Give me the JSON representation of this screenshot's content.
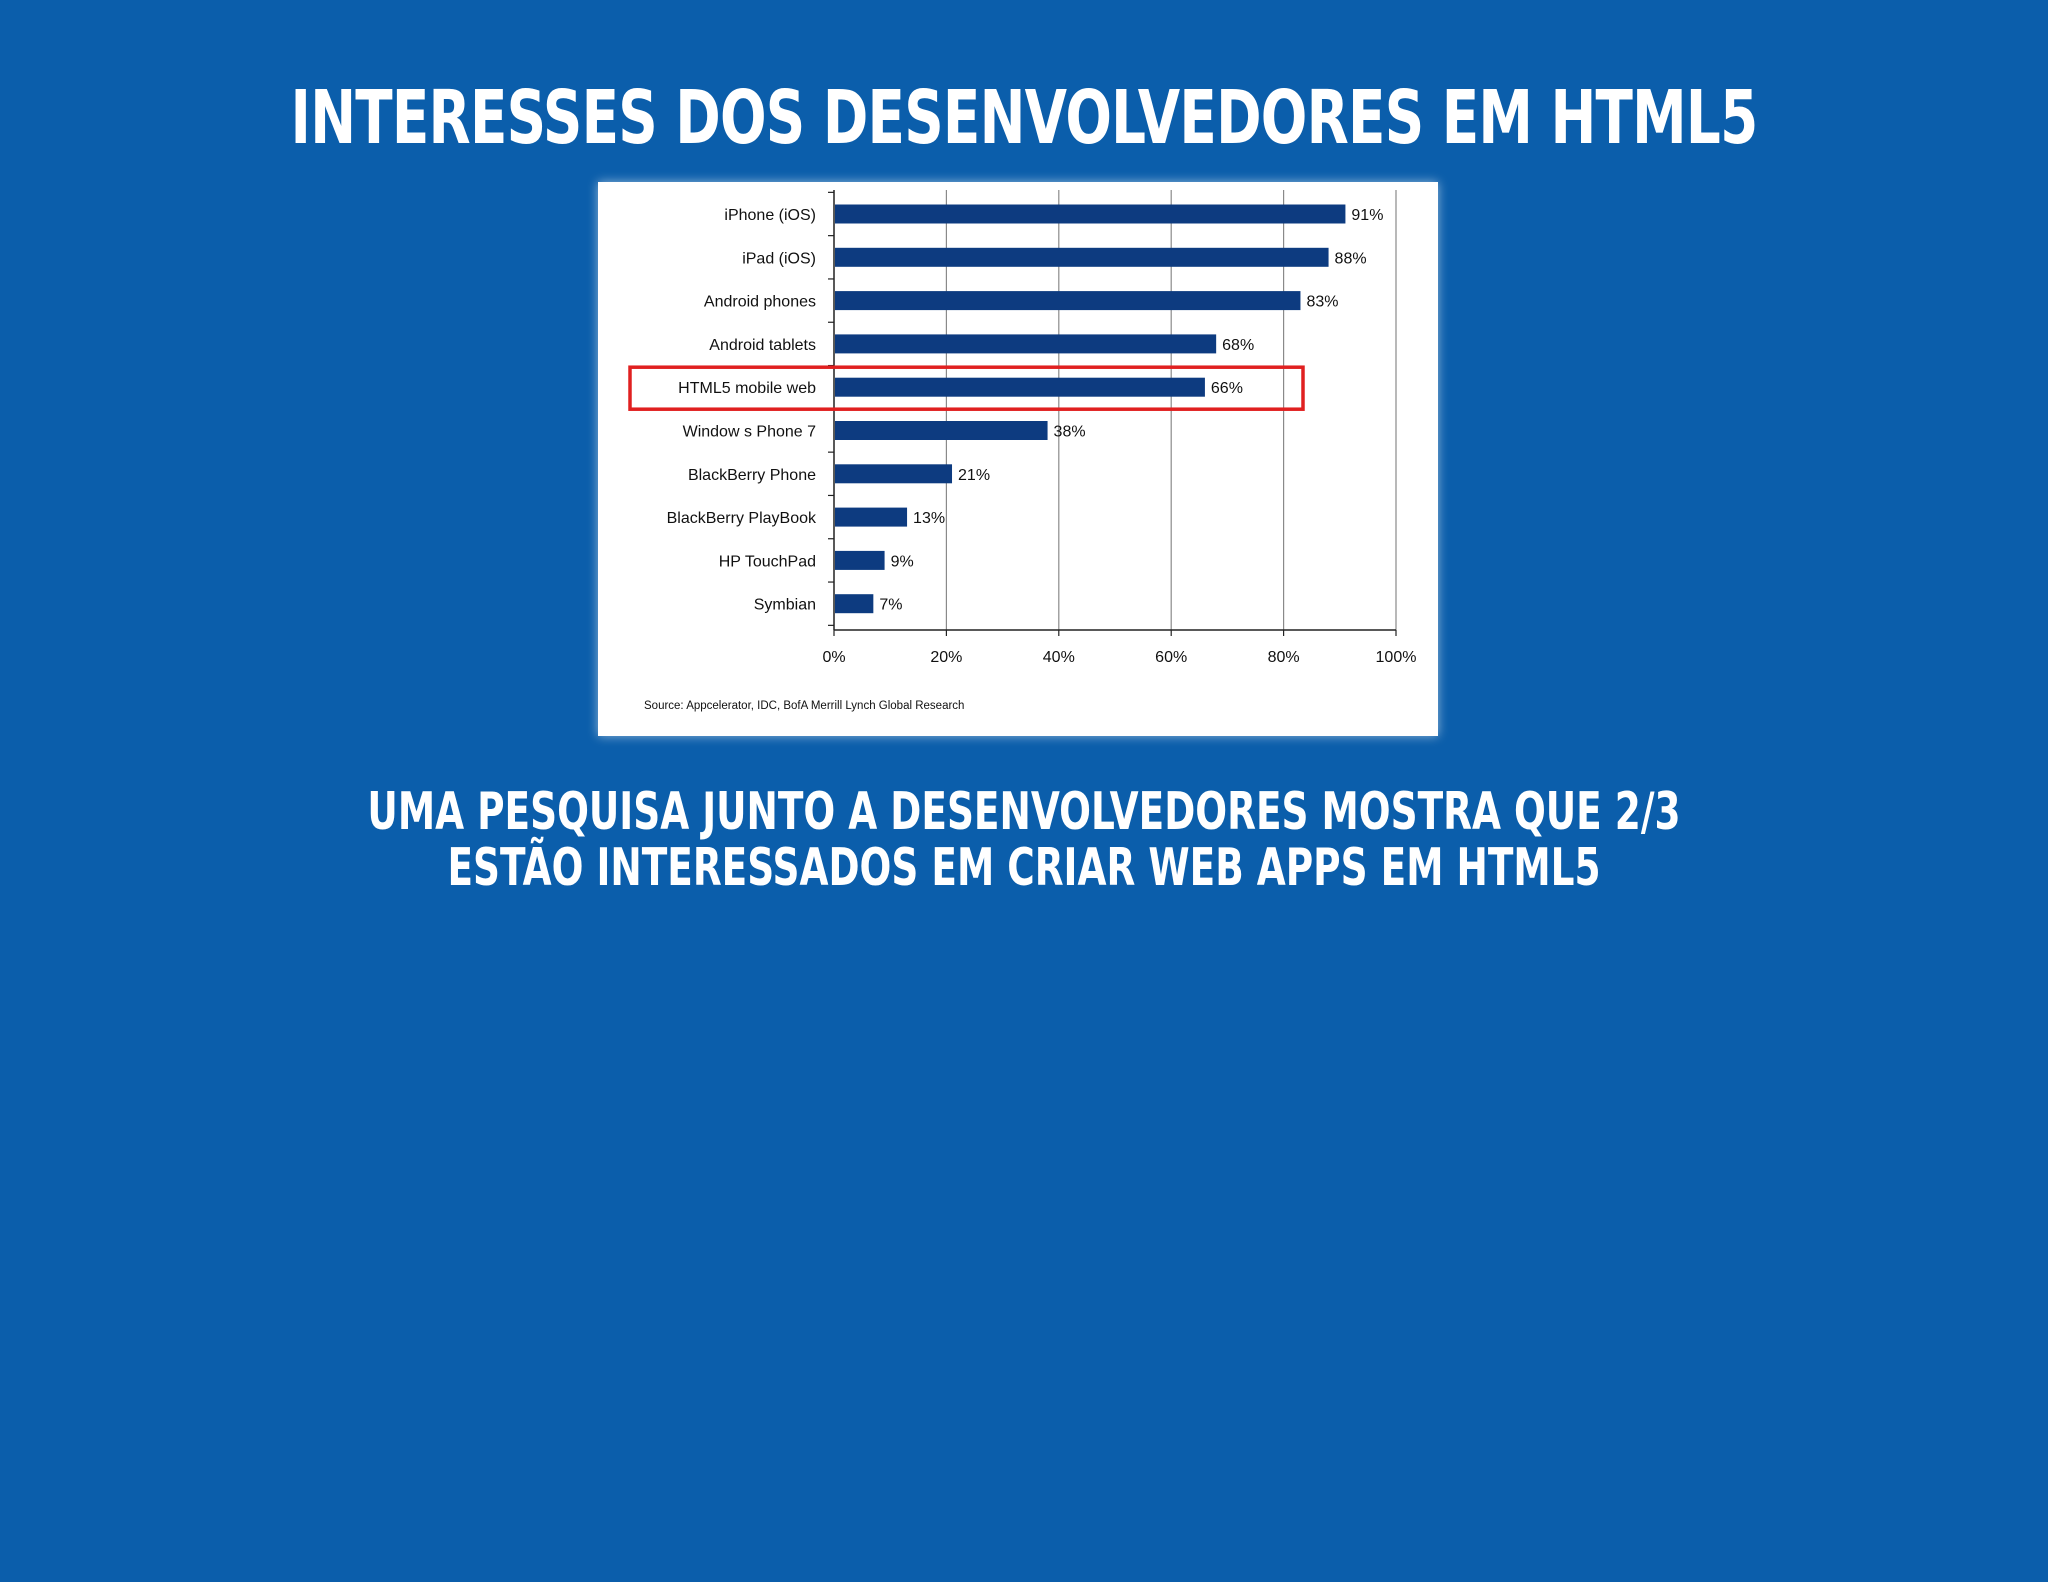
{
  "slide": {
    "title": "INTERESSES DOS DESENVOLVEDORES EM HTML5",
    "caption_line1": "UMA PESQUISA JUNTO A DESENVOLVEDORES MOSTRA QUE 2/3",
    "caption_line2": "ESTÃO INTERESSADOS EM CRIAR WEB APPS EM HTML5",
    "background_color": "#0b5eab"
  },
  "chart_data": {
    "type": "bar",
    "orientation": "horizontal",
    "categories": [
      "iPhone (iOS)",
      "iPad (iOS)",
      "Android phones",
      "Android tablets",
      "HTML5 mobile web",
      "Window s Phone 7",
      "BlackBerry Phone",
      "BlackBerry PlayBook",
      "HP TouchPad",
      "Symbian"
    ],
    "values": [
      91,
      88,
      83,
      68,
      66,
      38,
      21,
      13,
      9,
      7
    ],
    "value_labels": [
      "91%",
      "88%",
      "83%",
      "68%",
      "66%",
      "38%",
      "21%",
      "13%",
      "9%",
      "7%"
    ],
    "xlim": [
      0,
      100
    ],
    "x_ticks": [
      0,
      20,
      40,
      60,
      80,
      100
    ],
    "x_tick_labels": [
      "0%",
      "20%",
      "40%",
      "60%",
      "80%",
      "100%"
    ],
    "grid": true,
    "highlighted_category": "HTML5 mobile web",
    "source": "Source: Appcelerator, IDC, BofA Merrill Lynch Global Research",
    "bar_color": "#0d3b80",
    "highlight_color": "#e02020"
  }
}
